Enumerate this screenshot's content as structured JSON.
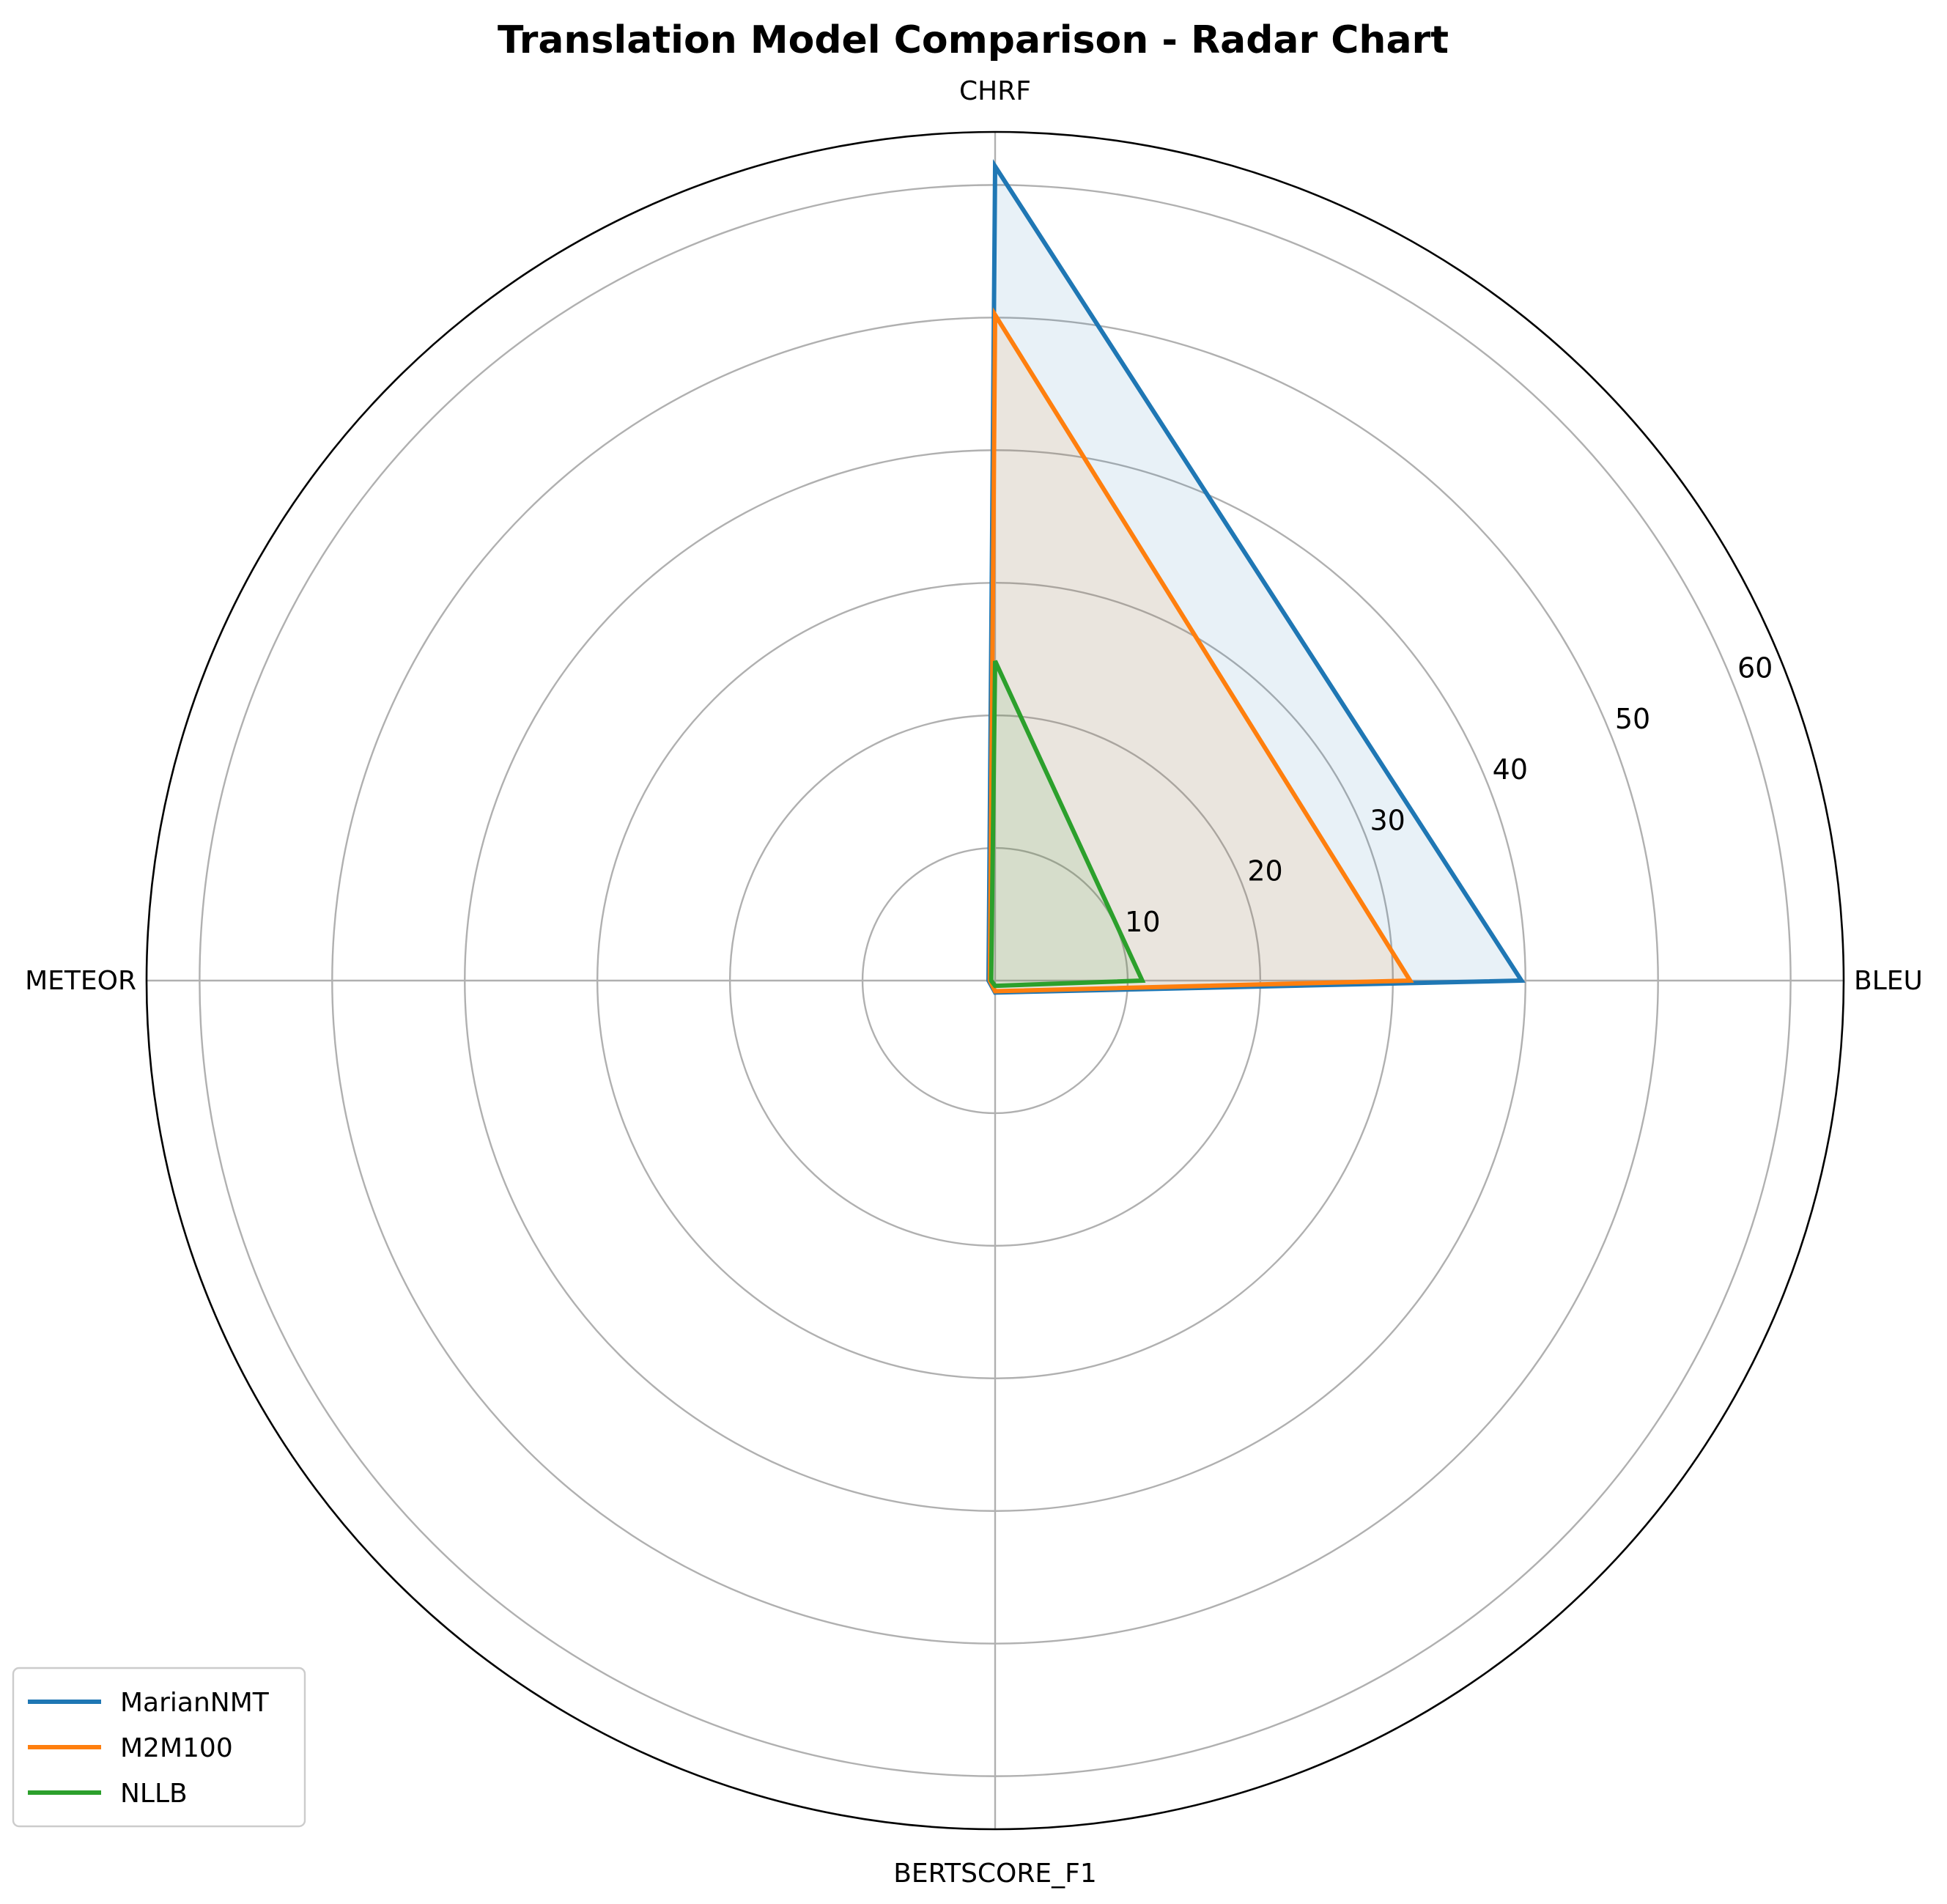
{
  "chart_data": {
    "type": "radar",
    "title": "Translation Model Comparison - Radar Chart",
    "axes": [
      "BLEU",
      "CHRF",
      "METEOR",
      "BERTSCORE_F1"
    ],
    "rlim": [
      0,
      64
    ],
    "rticks": [
      10,
      20,
      30,
      40,
      50,
      60
    ],
    "grid": true,
    "legend_position": "lower-left",
    "series": [
      {
        "name": "MarianNMT",
        "color": "#1f77b4",
        "values": [
          39.7,
          61.4,
          0.5,
          0.9
        ]
      },
      {
        "name": "M2M100",
        "color": "#ff7f0e",
        "values": [
          31.3,
          50.2,
          0.4,
          0.8
        ]
      },
      {
        "name": "NLLB",
        "color": "#2ca02c",
        "values": [
          11.1,
          24.1,
          0.3,
          0.4
        ]
      }
    ]
  }
}
